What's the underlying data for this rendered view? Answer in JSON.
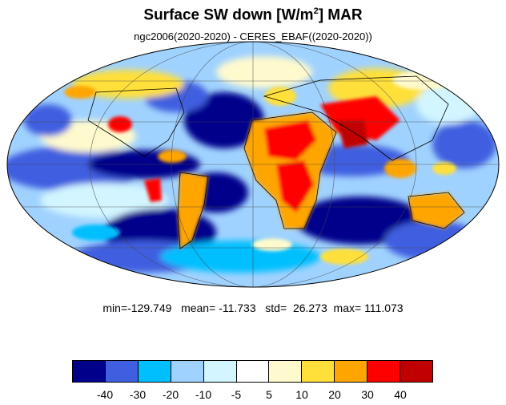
{
  "title": {
    "main": "Surface SW down [W/m",
    "sup": "2",
    "suffix": "]  MAR"
  },
  "subtitle": "ngc2006(2020-2020) - CERES_EBAF((2020-2020))",
  "stats": {
    "min": "-129.749",
    "mean": "-11.733",
    "std": "26.273",
    "max": "111.073"
  },
  "colorbar": {
    "colors": [
      "#00008b",
      "#3f5fe0",
      "#00bfff",
      "#a0d2ff",
      "#d2f5ff",
      "#ffffff",
      "#fffacd",
      "#ffe03a",
      "#ffa500",
      "#ff0000",
      "#c00000"
    ],
    "labels": [
      "-40",
      "-30",
      "-20",
      "-10",
      "-5",
      "5",
      "10",
      "20",
      "30",
      "40"
    ]
  },
  "map": {
    "projection": "mollweide",
    "fill_description_colors": [
      "#00008b",
      "#3f5fe0",
      "#00bfff",
      "#a0d2ff",
      "#d2f5ff",
      "#ffffff",
      "#fffacd",
      "#ffe03a",
      "#ffa500",
      "#ff0000",
      "#c00000"
    ]
  }
}
